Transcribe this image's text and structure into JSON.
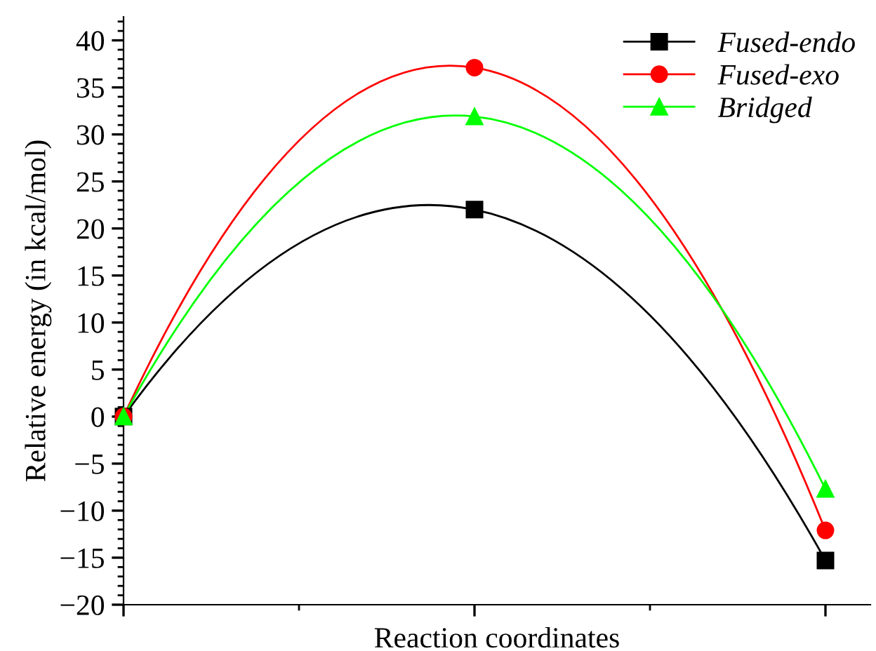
{
  "chart_data": {
    "type": "line",
    "xlabel": "Reaction coordinates",
    "ylabel": "Relative energy (in kcal/mol)",
    "categories": [
      null,
      null,
      null
    ],
    "series": [
      {
        "name": "Fused-endo",
        "color": "#000000",
        "marker": "square",
        "values": [
          0,
          22,
          -15.3
        ]
      },
      {
        "name": "Fused-exo",
        "color": "#ff0000",
        "marker": "circle",
        "values": [
          0,
          37.1,
          -12.1
        ]
      },
      {
        "name": "Bridged",
        "color": "#00ff00",
        "marker": "triangle",
        "values": [
          0,
          31.9,
          -7.7
        ]
      }
    ],
    "ylim": [
      -20,
      42.5
    ],
    "yticks": [
      -20,
      -15,
      -10,
      -5,
      0,
      5,
      10,
      15,
      20,
      25,
      30,
      35,
      40
    ],
    "grid": false,
    "legend": "top right",
    "line_style": "solid"
  }
}
